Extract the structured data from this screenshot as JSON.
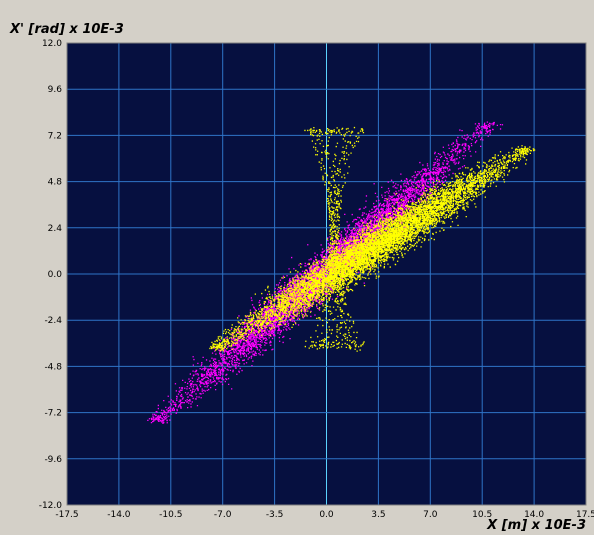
{
  "chart_data": {
    "type": "scatter",
    "title": "",
    "xlabel": "X [m] x 10E-3",
    "ylabel": "X' [rad] x 10E-3",
    "xlim": [
      -17.5,
      17.5
    ],
    "ylim": [
      -12.0,
      12.0
    ],
    "xticks": [
      "-17.5",
      "-14.0",
      "-10.5",
      "-7.0",
      "-3.5",
      "0.0",
      "3.5",
      "7.0",
      "10.5",
      "14.0",
      "17.5"
    ],
    "yticks": [
      "12.0",
      "9.6",
      "7.2",
      "4.8",
      "2.4",
      "0.0",
      "-2.4",
      "-4.8",
      "-7.2",
      "-9.6",
      "-12.0"
    ],
    "grid": true,
    "colors": {
      "plot_background": "#061040",
      "grid": "#2f74c8",
      "zero_axis": "#5ad2ff",
      "series_magenta": "#ff00ff",
      "series_yellow": "#ffff00"
    },
    "series": [
      {
        "color": "#ff00ff",
        "shape": "elliptical band",
        "center": [
          0.8,
          0.6
        ],
        "major_axis_endpoints": [
          [
            -11.5,
            -7.6
          ],
          [
            11.0,
            7.8
          ]
        ],
        "half_width_y": 1.1,
        "points": 5500
      },
      {
        "color": "#ffff00",
        "shape": "elliptical band",
        "center": [
          1.5,
          0.9
        ],
        "major_axis_endpoints": [
          [
            -7.5,
            -3.8
          ],
          [
            13.5,
            6.5
          ]
        ],
        "half_width_y": 1.0,
        "points": 7000
      },
      {
        "color": "#ffff00",
        "shape": "hourglass halo",
        "x_range": [
          -1.5,
          2.5
        ],
        "y_range": [
          -3.8,
          7.6
        ],
        "points": 600
      }
    ]
  }
}
